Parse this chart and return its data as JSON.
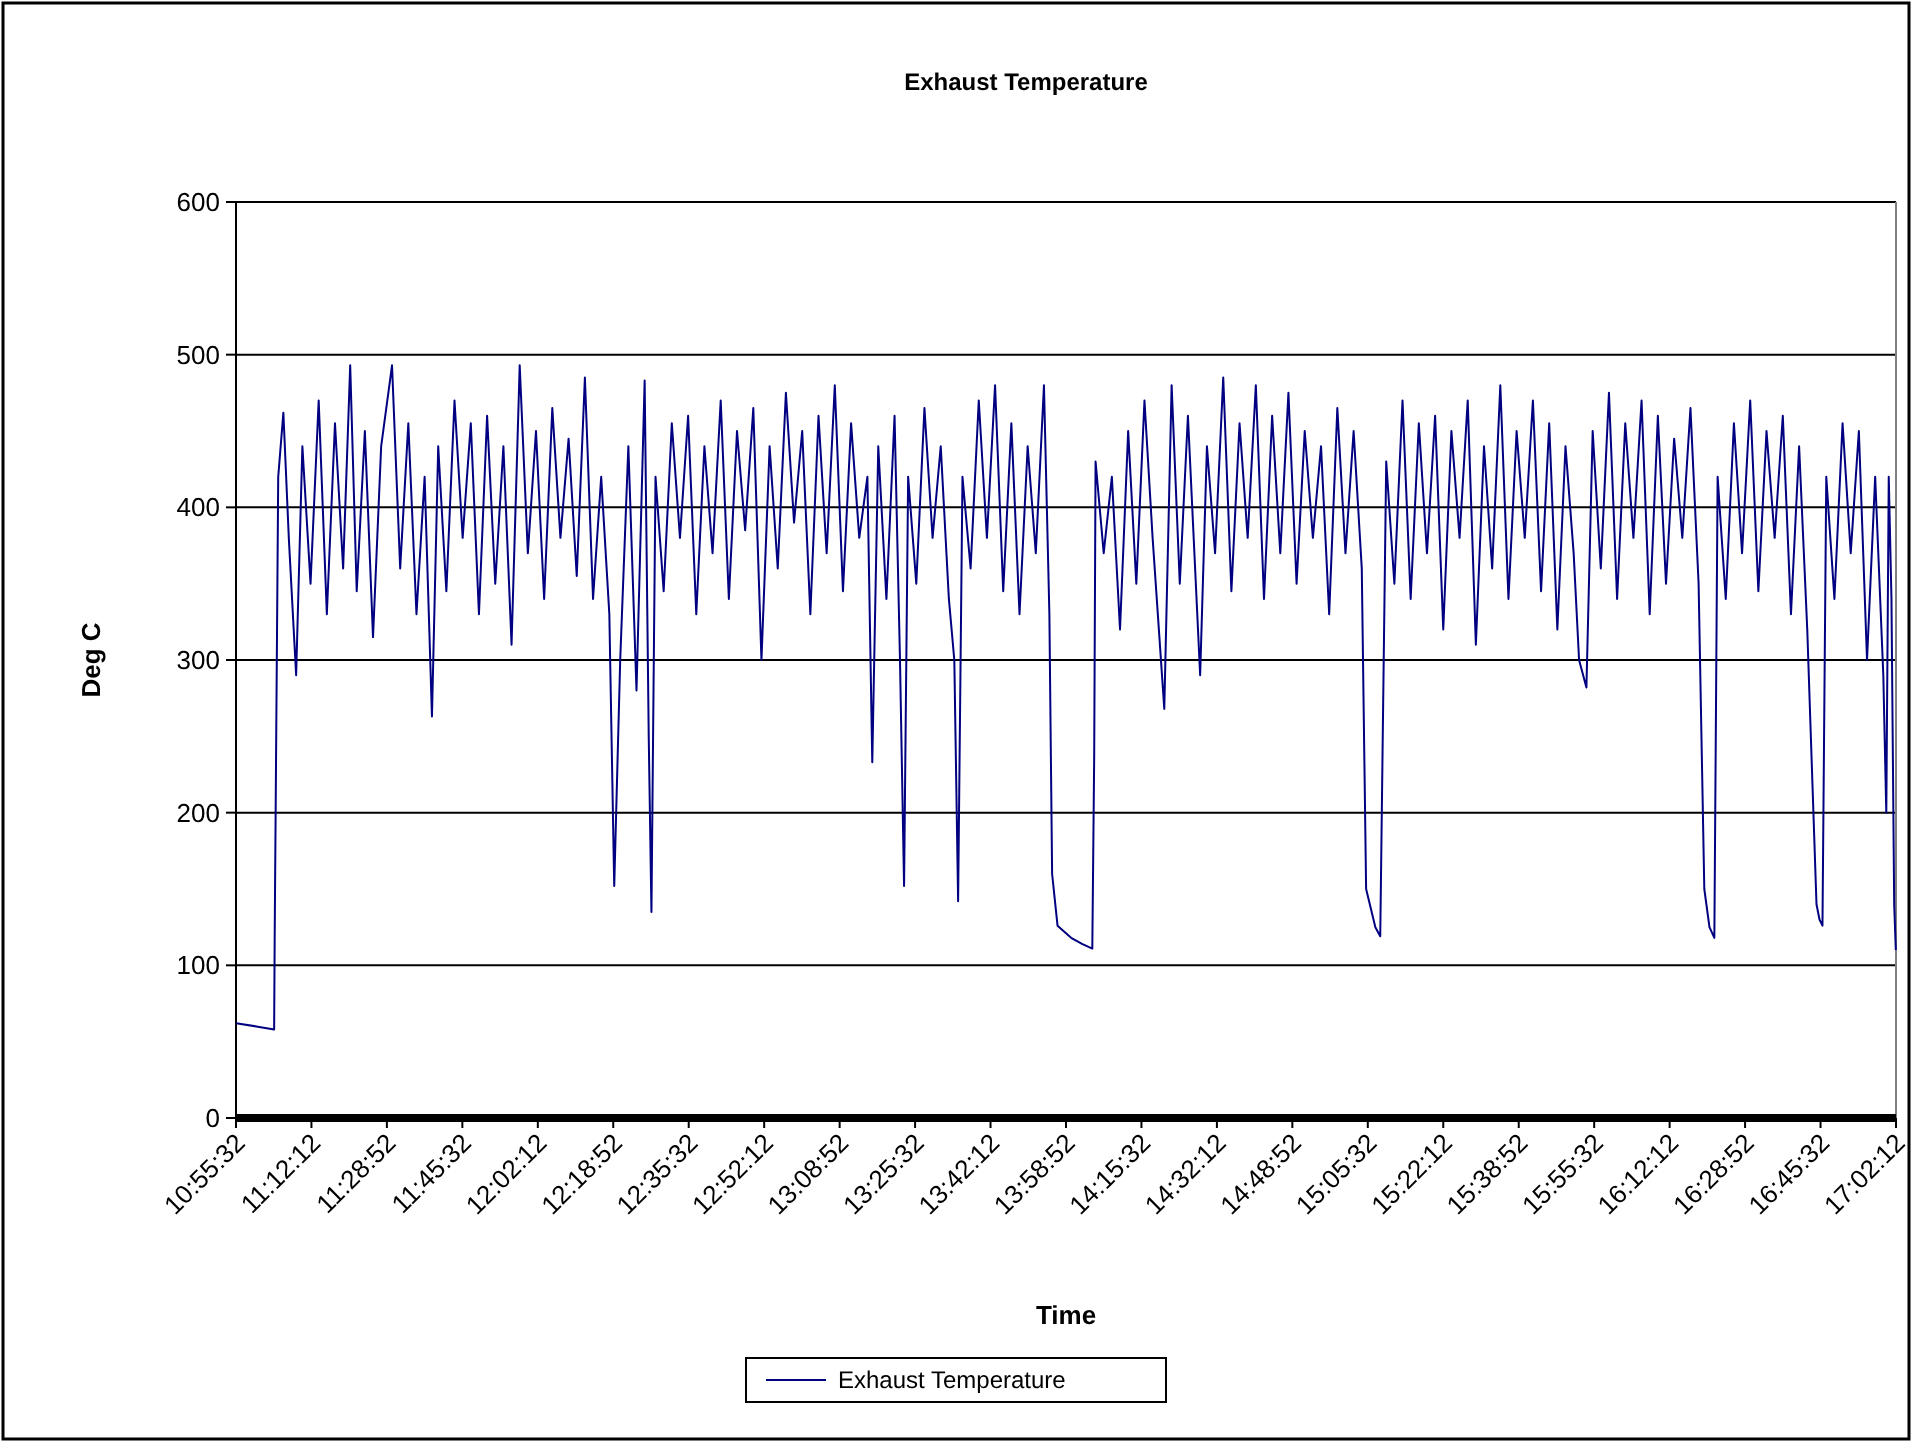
{
  "chart_data": {
    "type": "line",
    "title": "Exhaust Temperature",
    "xlabel": "Time",
    "ylabel": "Deg C",
    "xlim": [
      10.9256,
      17.0367
    ],
    "ylim": [
      0,
      600
    ],
    "yticks": [
      0,
      100,
      200,
      300,
      400,
      500,
      600
    ],
    "xticks": [
      {
        "value": 10.9256,
        "label": "10:55:32"
      },
      {
        "value": 11.2033,
        "label": "11:12:12"
      },
      {
        "value": 11.4811,
        "label": "11:28:52"
      },
      {
        "value": 11.7589,
        "label": "11:45:32"
      },
      {
        "value": 12.0367,
        "label": "12:02:12"
      },
      {
        "value": 12.3144,
        "label": "12:18:52"
      },
      {
        "value": 12.5922,
        "label": "12:35:32"
      },
      {
        "value": 12.87,
        "label": "12:52:12"
      },
      {
        "value": 13.1478,
        "label": "13:08:52"
      },
      {
        "value": 13.4256,
        "label": "13:25:32"
      },
      {
        "value": 13.7033,
        "label": "13:42:12"
      },
      {
        "value": 13.9811,
        "label": "13:58:52"
      },
      {
        "value": 14.2589,
        "label": "14:15:32"
      },
      {
        "value": 14.5367,
        "label": "14:32:12"
      },
      {
        "value": 14.8144,
        "label": "14:48:52"
      },
      {
        "value": 15.0922,
        "label": "15:05:32"
      },
      {
        "value": 15.37,
        "label": "15:22:12"
      },
      {
        "value": 15.6478,
        "label": "15:38:52"
      },
      {
        "value": 15.9256,
        "label": "15:55:32"
      },
      {
        "value": 16.2033,
        "label": "16:12:12"
      },
      {
        "value": 16.4811,
        "label": "16:28:52"
      },
      {
        "value": 16.7589,
        "label": "16:45:32"
      },
      {
        "value": 17.0367,
        "label": "17:02:12"
      }
    ],
    "grid": "y",
    "legend": "bottom",
    "marker": "none",
    "line_style": "solid",
    "series": [
      {
        "name": "Exhaust Temperature",
        "color": "#000080",
        "x": [
          10.926,
          11.0,
          11.066,
          11.068,
          11.081,
          11.1,
          11.12,
          11.147,
          11.17,
          11.2,
          11.23,
          11.26,
          11.29,
          11.32,
          11.346,
          11.37,
          11.4,
          11.43,
          11.46,
          11.5,
          11.53,
          11.56,
          11.59,
          11.62,
          11.647,
          11.67,
          11.7,
          11.73,
          11.76,
          11.79,
          11.82,
          11.85,
          11.88,
          11.91,
          11.94,
          11.97,
          12.0,
          12.03,
          12.06,
          12.09,
          12.12,
          12.15,
          12.18,
          12.21,
          12.24,
          12.27,
          12.3,
          12.318,
          12.34,
          12.37,
          12.4,
          12.43,
          12.445,
          12.455,
          12.47,
          12.5,
          12.53,
          12.56,
          12.59,
          12.62,
          12.65,
          12.68,
          12.71,
          12.74,
          12.77,
          12.8,
          12.83,
          12.86,
          12.89,
          12.92,
          12.95,
          12.98,
          13.01,
          13.04,
          13.07,
          13.1,
          13.13,
          13.16,
          13.19,
          13.22,
          13.25,
          13.268,
          13.29,
          13.32,
          13.35,
          13.37,
          13.385,
          13.4,
          13.43,
          13.46,
          13.49,
          13.52,
          13.55,
          13.57,
          13.584,
          13.6,
          13.63,
          13.66,
          13.69,
          13.72,
          13.75,
          13.78,
          13.81,
          13.84,
          13.87,
          13.9,
          13.92,
          13.93,
          13.95,
          14.0,
          14.04,
          14.078,
          14.085,
          14.09,
          14.12,
          14.15,
          14.18,
          14.21,
          14.24,
          14.27,
          14.3,
          14.343,
          14.37,
          14.4,
          14.43,
          14.475,
          14.5,
          14.53,
          14.56,
          14.59,
          14.62,
          14.65,
          14.68,
          14.71,
          14.74,
          14.77,
          14.8,
          14.83,
          14.86,
          14.89,
          14.92,
          14.95,
          14.98,
          15.01,
          15.04,
          15.07,
          15.086,
          15.12,
          15.138,
          15.16,
          15.19,
          15.22,
          15.25,
          15.28,
          15.31,
          15.34,
          15.37,
          15.4,
          15.43,
          15.46,
          15.49,
          15.52,
          15.55,
          15.58,
          15.61,
          15.64,
          15.67,
          15.7,
          15.73,
          15.76,
          15.79,
          15.82,
          15.85,
          15.87,
          15.897,
          15.92,
          15.95,
          15.98,
          16.01,
          16.04,
          16.07,
          16.1,
          16.13,
          16.16,
          16.19,
          16.22,
          16.25,
          16.28,
          16.31,
          16.331,
          16.35,
          16.368,
          16.38,
          16.41,
          16.44,
          16.47,
          16.5,
          16.53,
          16.56,
          16.59,
          16.62,
          16.65,
          16.68,
          16.71,
          16.744,
          16.755,
          16.766,
          16.78,
          16.81,
          16.84,
          16.87,
          16.9,
          16.93,
          16.96,
          16.99,
          17.001,
          17.01,
          17.02,
          17.03,
          17.036
        ],
        "values": [
          62,
          60,
          58,
          118,
          420,
          462,
          380,
          290,
          440,
          350,
          470,
          330,
          455,
          360,
          493,
          345,
          450,
          315,
          440,
          493,
          360,
          455,
          330,
          420,
          263,
          440,
          345,
          470,
          380,
          455,
          330,
          460,
          350,
          440,
          310,
          493,
          370,
          450,
          340,
          465,
          380,
          445,
          355,
          485,
          340,
          420,
          330,
          152,
          300,
          440,
          280,
          483,
          250,
          135,
          420,
          345,
          455,
          380,
          460,
          330,
          440,
          370,
          470,
          340,
          450,
          385,
          465,
          300,
          440,
          360,
          475,
          390,
          450,
          330,
          460,
          370,
          480,
          345,
          455,
          380,
          420,
          233,
          440,
          340,
          460,
          300,
          152,
          420,
          350,
          465,
          380,
          440,
          340,
          300,
          142,
          420,
          360,
          470,
          380,
          480,
          345,
          455,
          330,
          440,
          370,
          480,
          330,
          160,
          126,
          118,
          114,
          111,
          238,
          430,
          370,
          420,
          320,
          450,
          350,
          470,
          380,
          268,
          480,
          350,
          460,
          290,
          440,
          370,
          485,
          345,
          455,
          380,
          480,
          340,
          460,
          370,
          475,
          350,
          450,
          380,
          440,
          330,
          465,
          370,
          450,
          360,
          150,
          125,
          119,
          430,
          350,
          470,
          340,
          455,
          370,
          460,
          320,
          450,
          380,
          470,
          310,
          440,
          360,
          480,
          340,
          450,
          380,
          470,
          345,
          455,
          320,
          440,
          370,
          300,
          282,
          450,
          360,
          475,
          340,
          455,
          380,
          470,
          330,
          460,
          350,
          445,
          380,
          465,
          350,
          150,
          125,
          118,
          420,
          340,
          455,
          370,
          470,
          345,
          450,
          380,
          460,
          330,
          440,
          320,
          140,
          130,
          126,
          420,
          340,
          455,
          370,
          450,
          300,
          420,
          290,
          200,
          420,
          340,
          140,
          110
        ]
      }
    ]
  }
}
